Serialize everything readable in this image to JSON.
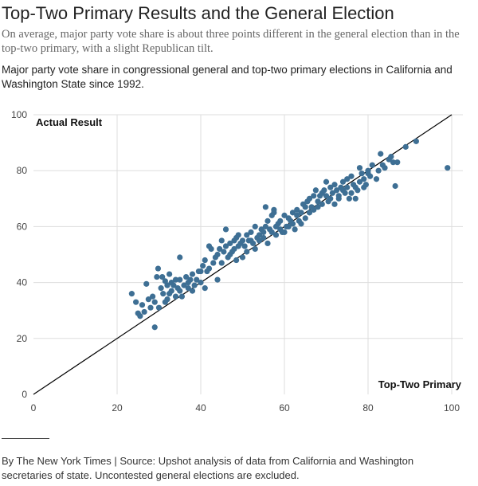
{
  "header": {
    "title": "Top-Two Primary Results and the General Election",
    "subtitle": "On average, major party vote share is about three points different in the general election than in the top-two primary, with a slight Republican tilt.",
    "description": "Major party vote share in congressional general and top-two primary elections in California and Washington State since 1992."
  },
  "footer": {
    "credit": "By The New York Times | Source: Upshot analysis of data from California and Washington secretaries of state. Uncontested general elections are excluded."
  },
  "colors": {
    "point": "#3e6f94",
    "grid": "#dddddd",
    "line": "#000000"
  },
  "chart_data": {
    "type": "scatter",
    "xlabel": "Top-Two Primary",
    "ylabel": "Actual Result",
    "xlim": [
      0,
      100
    ],
    "ylim": [
      0,
      100
    ],
    "x_ticks": [
      0,
      20,
      40,
      60,
      80,
      100
    ],
    "y_ticks": [
      0,
      20,
      40,
      60,
      80,
      100
    ],
    "grid": "on",
    "reference_line": "y = x",
    "points": [
      [
        23.5,
        36
      ],
      [
        24.5,
        33
      ],
      [
        25,
        29
      ],
      [
        25.5,
        28
      ],
      [
        26,
        32
      ],
      [
        26.5,
        29.5
      ],
      [
        27,
        39.5
      ],
      [
        27.5,
        34
      ],
      [
        28,
        31
      ],
      [
        28.5,
        35
      ],
      [
        29,
        24
      ],
      [
        29,
        33
      ],
      [
        29.5,
        42
      ],
      [
        29.8,
        45
      ],
      [
        30,
        31
      ],
      [
        30.5,
        38
      ],
      [
        30.8,
        42
      ],
      [
        31,
        36
      ],
      [
        31.5,
        33
      ],
      [
        31.5,
        40.5
      ],
      [
        32,
        34
      ],
      [
        32,
        39
      ],
      [
        32.5,
        43
      ],
      [
        32.5,
        36
      ],
      [
        33,
        37
      ],
      [
        33,
        40
      ],
      [
        33.5,
        39
      ],
      [
        34,
        35
      ],
      [
        34,
        41
      ],
      [
        34.5,
        38
      ],
      [
        35,
        37
      ],
      [
        35,
        41
      ],
      [
        35,
        49
      ],
      [
        35.5,
        35
      ],
      [
        36,
        39
      ],
      [
        36.5,
        42
      ],
      [
        37,
        38
      ],
      [
        37,
        40
      ],
      [
        37.5,
        41
      ],
      [
        38,
        43
      ],
      [
        38,
        37
      ],
      [
        38.5,
        39
      ],
      [
        39,
        41
      ],
      [
        39.5,
        44
      ],
      [
        40,
        40
      ],
      [
        40,
        44
      ],
      [
        40.5,
        46
      ],
      [
        41,
        38
      ],
      [
        41,
        48
      ],
      [
        41.5,
        44
      ],
      [
        42,
        45
      ],
      [
        42,
        53
      ],
      [
        42.5,
        52
      ],
      [
        43,
        47
      ],
      [
        43.5,
        49
      ],
      [
        44,
        41
      ],
      [
        44,
        50
      ],
      [
        44.5,
        52
      ],
      [
        45,
        47
      ],
      [
        45,
        55
      ],
      [
        45.5,
        51
      ],
      [
        46,
        59
      ],
      [
        46,
        53
      ],
      [
        46.5,
        49
      ],
      [
        47,
        50
      ],
      [
        47,
        54
      ],
      [
        47.5,
        51
      ],
      [
        48,
        52
      ],
      [
        48,
        55
      ],
      [
        48.5,
        56
      ],
      [
        48.5,
        48
      ],
      [
        49,
        53
      ],
      [
        49,
        57
      ],
      [
        49.5,
        54
      ],
      [
        50,
        49
      ],
      [
        50,
        55
      ],
      [
        50.5,
        53
      ],
      [
        51,
        51
      ],
      [
        51,
        57
      ],
      [
        51.5,
        55
      ],
      [
        52,
        55
      ],
      [
        52,
        58
      ],
      [
        52.5,
        54
      ],
      [
        53,
        60
      ],
      [
        53,
        52
      ],
      [
        53.5,
        56
      ],
      [
        54,
        57
      ],
      [
        54,
        55
      ],
      [
        54.5,
        59
      ],
      [
        55,
        58
      ],
      [
        55,
        56
      ],
      [
        55.5,
        60
      ],
      [
        55.5,
        67
      ],
      [
        56,
        54
      ],
      [
        56,
        62
      ],
      [
        56.5,
        59
      ],
      [
        57,
        58
      ],
      [
        57,
        64
      ],
      [
        57.5,
        65
      ],
      [
        57.5,
        66
      ],
      [
        58,
        60
      ],
      [
        58,
        57
      ],
      [
        58.5,
        61
      ],
      [
        59,
        59
      ],
      [
        59,
        62
      ],
      [
        59.5,
        58
      ],
      [
        60,
        64
      ],
      [
        60,
        58
      ],
      [
        60.5,
        60
      ],
      [
        61,
        63
      ],
      [
        61,
        60
      ],
      [
        61.5,
        62
      ],
      [
        62,
        61
      ],
      [
        62,
        65
      ],
      [
        62.5,
        59
      ],
      [
        63,
        64
      ],
      [
        63,
        66
      ],
      [
        63.5,
        62
      ],
      [
        64,
        61
      ],
      [
        64,
        65
      ],
      [
        64.5,
        68
      ],
      [
        65,
        63
      ],
      [
        65,
        67
      ],
      [
        65.5,
        69
      ],
      [
        66,
        65
      ],
      [
        66,
        70
      ],
      [
        66.5,
        67
      ],
      [
        67,
        66
      ],
      [
        67,
        71
      ],
      [
        67.5,
        73
      ],
      [
        68,
        69
      ],
      [
        68,
        67
      ],
      [
        68.5,
        71
      ],
      [
        69,
        72
      ],
      [
        69,
        68
      ],
      [
        69.5,
        73
      ],
      [
        70,
        71
      ],
      [
        70,
        76
      ],
      [
        70.5,
        69
      ],
      [
        71,
        74
      ],
      [
        71,
        70
      ],
      [
        71.5,
        72
      ],
      [
        72,
        75
      ],
      [
        72,
        68
      ],
      [
        72.5,
        73
      ],
      [
        73,
        71
      ],
      [
        73,
        70
      ],
      [
        73.5,
        74
      ],
      [
        74,
        73
      ],
      [
        74,
        76
      ],
      [
        74.5,
        72
      ],
      [
        75,
        77
      ],
      [
        75,
        74
      ],
      [
        75.5,
        70
      ],
      [
        76,
        78
      ],
      [
        76,
        72
      ],
      [
        76.5,
        75
      ],
      [
        77,
        74
      ],
      [
        77,
        70
      ],
      [
        77.5,
        73
      ],
      [
        78,
        81
      ],
      [
        78,
        76
      ],
      [
        78.5,
        79
      ],
      [
        79,
        77
      ],
      [
        79,
        74
      ],
      [
        79.5,
        75
      ],
      [
        80,
        79
      ],
      [
        80,
        80
      ],
      [
        80.5,
        78
      ],
      [
        81,
        82
      ],
      [
        82,
        77
      ],
      [
        82.5,
        80
      ],
      [
        83,
        86
      ],
      [
        83.5,
        82
      ],
      [
        84,
        81
      ],
      [
        85,
        84
      ],
      [
        85.5,
        85
      ],
      [
        86,
        83
      ],
      [
        86.5,
        74.5
      ],
      [
        87,
        83
      ],
      [
        89,
        88.5
      ],
      [
        91.5,
        90.5
      ],
      [
        99,
        81
      ]
    ]
  }
}
